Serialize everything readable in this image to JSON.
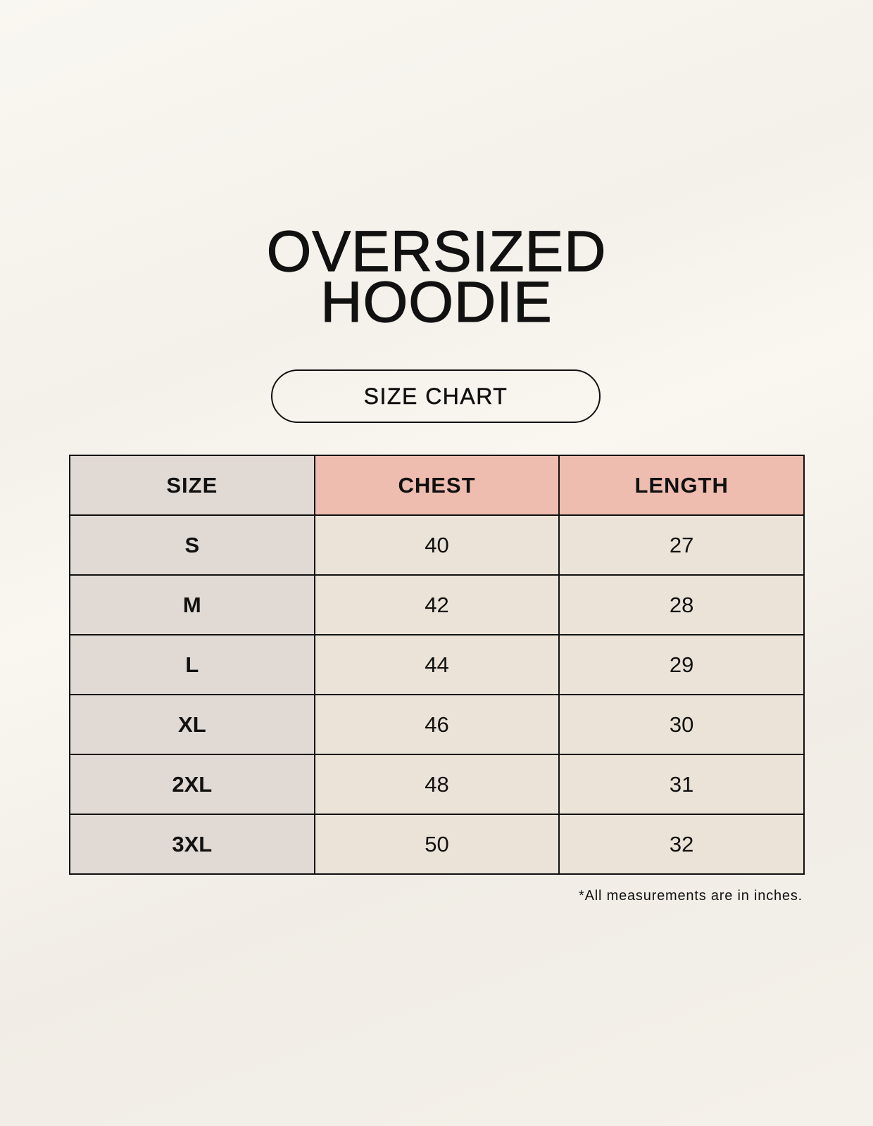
{
  "title": {
    "line1": "OVERSIZED",
    "line2": "HOODIE"
  },
  "subtitle": "SIZE CHART",
  "table": {
    "headers": [
      "SIZE",
      "CHEST",
      "LENGTH"
    ],
    "rows": [
      [
        "S",
        "40",
        "27"
      ],
      [
        "M",
        "42",
        "28"
      ],
      [
        "L",
        "44",
        "29"
      ],
      [
        "XL",
        "46",
        "30"
      ],
      [
        "2XL",
        "48",
        "31"
      ],
      [
        "3XL",
        "50",
        "32"
      ]
    ]
  },
  "footnote": "*All measurements are in inches.",
  "colors": {
    "size_column": "#e1d9d3",
    "header_accent": "#efbdaf",
    "value_cells": "#ebe3d8"
  }
}
